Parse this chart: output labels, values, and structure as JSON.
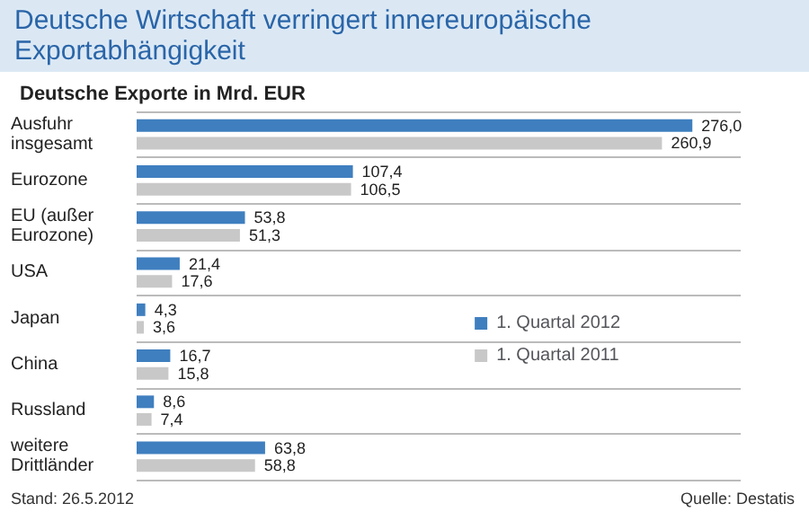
{
  "chart_data": {
    "type": "bar",
    "orientation": "horizontal",
    "title": "Deutsche Wirtschaft verringert innereuropäische Exportabhängigkeit",
    "subtitle": "Deutsche Exporte in Mrd. EUR",
    "categories": [
      "Ausfuhr insgesamt",
      "Eurozone",
      "EU (außer Eurozone)",
      "USA",
      "Japan",
      "China",
      "Russland",
      "weitere Drittländer"
    ],
    "series": [
      {
        "name": "1. Quartal 2012",
        "color": "#3f7fbf",
        "values": [
          276.0,
          107.4,
          53.8,
          21.4,
          4.3,
          16.7,
          8.6,
          63.8
        ],
        "value_labels": [
          "276,0",
          "107,4",
          "53,8",
          "21,4",
          "4,3",
          "16,7",
          "8,6",
          "63,8"
        ]
      },
      {
        "name": "1. Quartal 2011",
        "color": "#c8c8c8",
        "values": [
          260.9,
          106.5,
          51.3,
          17.6,
          3.6,
          15.8,
          7.4,
          58.8
        ],
        "value_labels": [
          "260,9",
          "106,5",
          "51,3",
          "17,6",
          "3,6",
          "15,8",
          "7,4",
          "58,8"
        ]
      }
    ],
    "legend": "right",
    "grid": "y",
    "annotations": [
      "Stand: 26.5.2012",
      "Quelle: Destatis"
    ]
  }
}
